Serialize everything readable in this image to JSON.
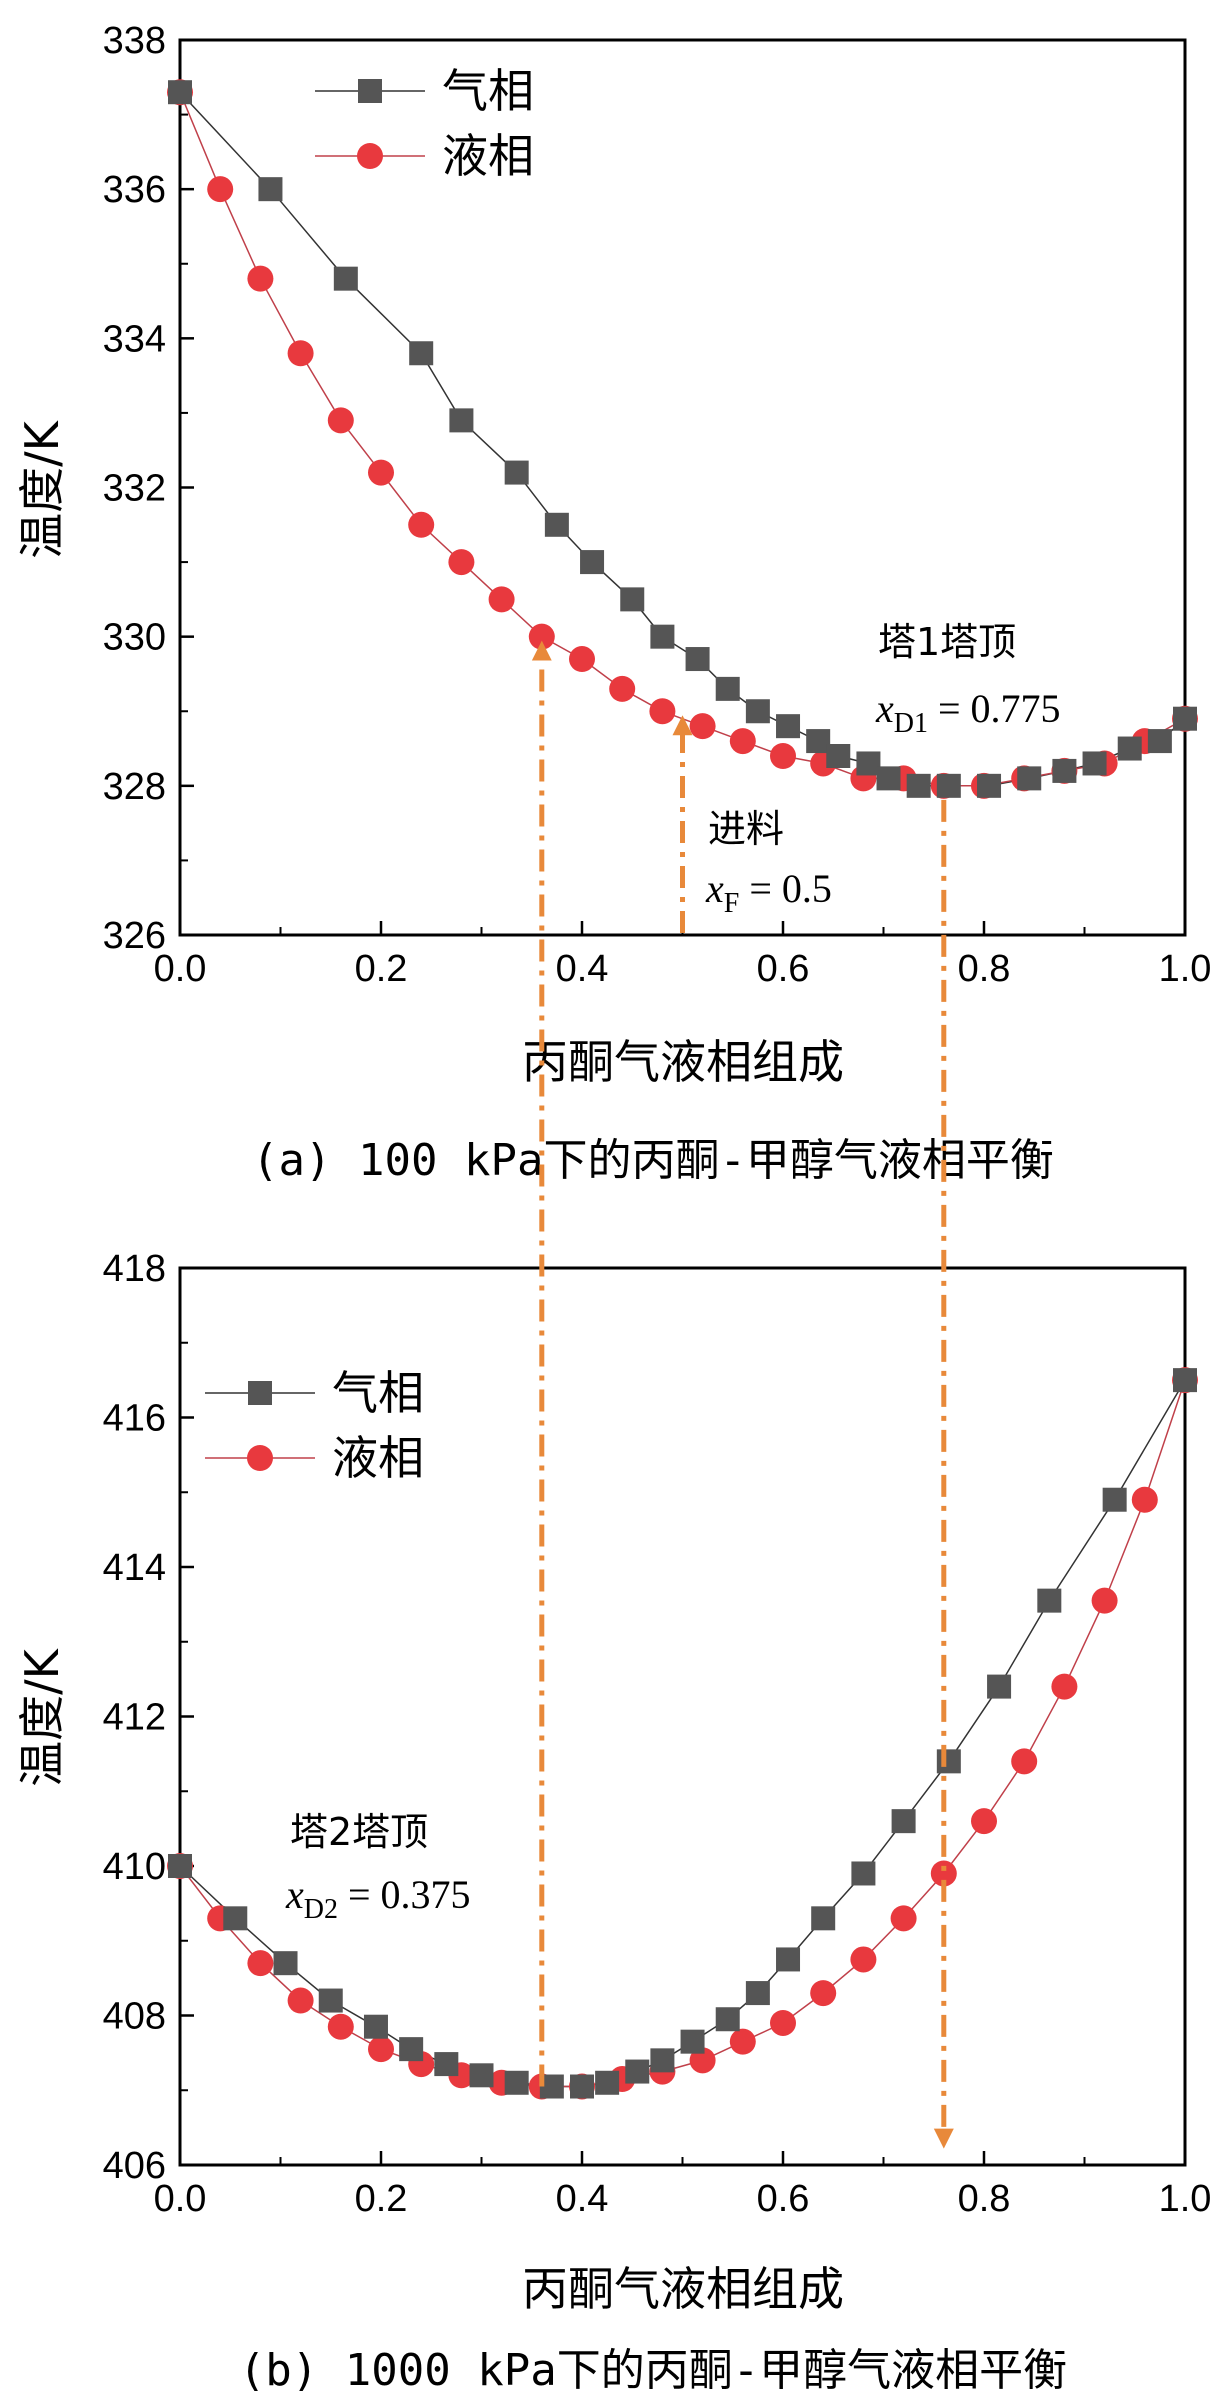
{
  "colors": {
    "vapor": "#555555",
    "liquid": "#e8393e",
    "line_vapor": "#333333",
    "line_liquid": "#c0404a",
    "arrow": "#e8893a"
  },
  "chart_data": [
    {
      "type": "line",
      "xlabel": "丙酮气液相组成",
      "ylabel": "温度/K",
      "xlim": [
        0,
        1
      ],
      "ylim": [
        326,
        338
      ],
      "xticks": [
        "0.0",
        "0.2",
        "0.4",
        "0.6",
        "0.8",
        "1.0"
      ],
      "yticks": [
        "326",
        "328",
        "330",
        "332",
        "334",
        "336",
        "338"
      ],
      "caption": "(a) 100 kPa下的丙酮-甲醇气液相平衡",
      "legend": [
        "气相",
        "液相"
      ],
      "series": [
        {
          "name": "气相",
          "marker": "square",
          "x": [
            0.0,
            0.09,
            0.165,
            0.24,
            0.28,
            0.335,
            0.375,
            0.41,
            0.45,
            0.48,
            0.515,
            0.545,
            0.575,
            0.605,
            0.635,
            0.655,
            0.685,
            0.705,
            0.735,
            0.765,
            0.805,
            0.845,
            0.88,
            0.91,
            0.945,
            0.975,
            1.0
          ],
          "y": [
            337.3,
            336.0,
            334.8,
            333.8,
            332.9,
            332.2,
            331.5,
            331.0,
            330.5,
            330.0,
            329.7,
            329.3,
            329.0,
            328.8,
            328.6,
            328.4,
            328.3,
            328.1,
            328.0,
            328.0,
            328.0,
            328.1,
            328.2,
            328.3,
            328.5,
            328.6,
            328.9
          ]
        },
        {
          "name": "液相",
          "marker": "circle",
          "x": [
            0.0,
            0.04,
            0.08,
            0.12,
            0.16,
            0.2,
            0.24,
            0.28,
            0.32,
            0.36,
            0.4,
            0.44,
            0.48,
            0.52,
            0.56,
            0.6,
            0.64,
            0.68,
            0.72,
            0.76,
            0.8,
            0.84,
            0.88,
            0.92,
            0.96,
            1.0
          ],
          "y": [
            337.3,
            336.0,
            334.8,
            333.8,
            332.9,
            332.2,
            331.5,
            331.0,
            330.5,
            330.0,
            329.7,
            329.3,
            329.0,
            328.8,
            328.6,
            328.4,
            328.3,
            328.1,
            328.1,
            328.0,
            328.0,
            328.1,
            328.2,
            328.3,
            328.6,
            328.9
          ]
        }
      ],
      "annotations": [
        {
          "text": "塔1塔顶",
          "sub_label": "x",
          "sub": "D1",
          "value": "= 0.775"
        },
        {
          "text": "进料",
          "sub_label": "x",
          "sub": "F",
          "value": "= 0.5"
        }
      ],
      "arrows": [
        {
          "x": 0.36,
          "y_to": 330.0
        },
        {
          "x": 0.5,
          "y_to": 329.0
        },
        {
          "x": 0.76,
          "y_to": 328.0
        }
      ]
    },
    {
      "type": "line",
      "xlabel": "丙酮气液相组成",
      "ylabel": "温度/K",
      "xlim": [
        0,
        1
      ],
      "ylim": [
        406,
        418
      ],
      "xticks": [
        "0.0",
        "0.2",
        "0.4",
        "0.6",
        "0.8",
        "1.0"
      ],
      "yticks": [
        "406",
        "408",
        "410",
        "412",
        "414",
        "416",
        "418"
      ],
      "caption": "(b) 1000 kPa下的丙酮-甲醇气液相平衡",
      "legend": [
        "气相",
        "液相"
      ],
      "series": [
        {
          "name": "气相",
          "marker": "square",
          "x": [
            0.0,
            0.055,
            0.105,
            0.15,
            0.195,
            0.23,
            0.265,
            0.3,
            0.335,
            0.37,
            0.4,
            0.425,
            0.455,
            0.48,
            0.51,
            0.545,
            0.575,
            0.605,
            0.64,
            0.68,
            0.72,
            0.765,
            0.815,
            0.865,
            0.93,
            1.0
          ],
          "y": [
            410.0,
            409.3,
            408.7,
            408.2,
            407.85,
            407.55,
            407.35,
            407.2,
            407.1,
            407.05,
            407.05,
            407.1,
            407.25,
            407.4,
            407.65,
            407.95,
            408.3,
            408.75,
            409.3,
            409.9,
            410.6,
            411.4,
            412.4,
            413.55,
            414.9,
            416.5
          ]
        },
        {
          "name": "液相",
          "marker": "circle",
          "x": [
            0.0,
            0.04,
            0.08,
            0.12,
            0.16,
            0.2,
            0.24,
            0.28,
            0.32,
            0.36,
            0.4,
            0.44,
            0.48,
            0.52,
            0.56,
            0.6,
            0.64,
            0.68,
            0.72,
            0.76,
            0.8,
            0.84,
            0.88,
            0.92,
            0.96,
            1.0
          ],
          "y": [
            410.0,
            409.3,
            408.7,
            408.2,
            407.85,
            407.55,
            407.35,
            407.2,
            407.1,
            407.05,
            407.05,
            407.15,
            407.25,
            407.4,
            407.65,
            407.9,
            408.3,
            408.75,
            409.3,
            409.9,
            410.6,
            411.4,
            412.4,
            413.55,
            414.9,
            416.5
          ]
        }
      ],
      "annotations": [
        {
          "text": "塔2塔顶",
          "sub_label": "x",
          "sub": "D2",
          "value": "= 0.375"
        }
      ],
      "arrows": [
        {
          "x": 0.36,
          "y_to": 407.05
        },
        {
          "x": 0.76,
          "y_to": 406.3
        }
      ]
    }
  ]
}
